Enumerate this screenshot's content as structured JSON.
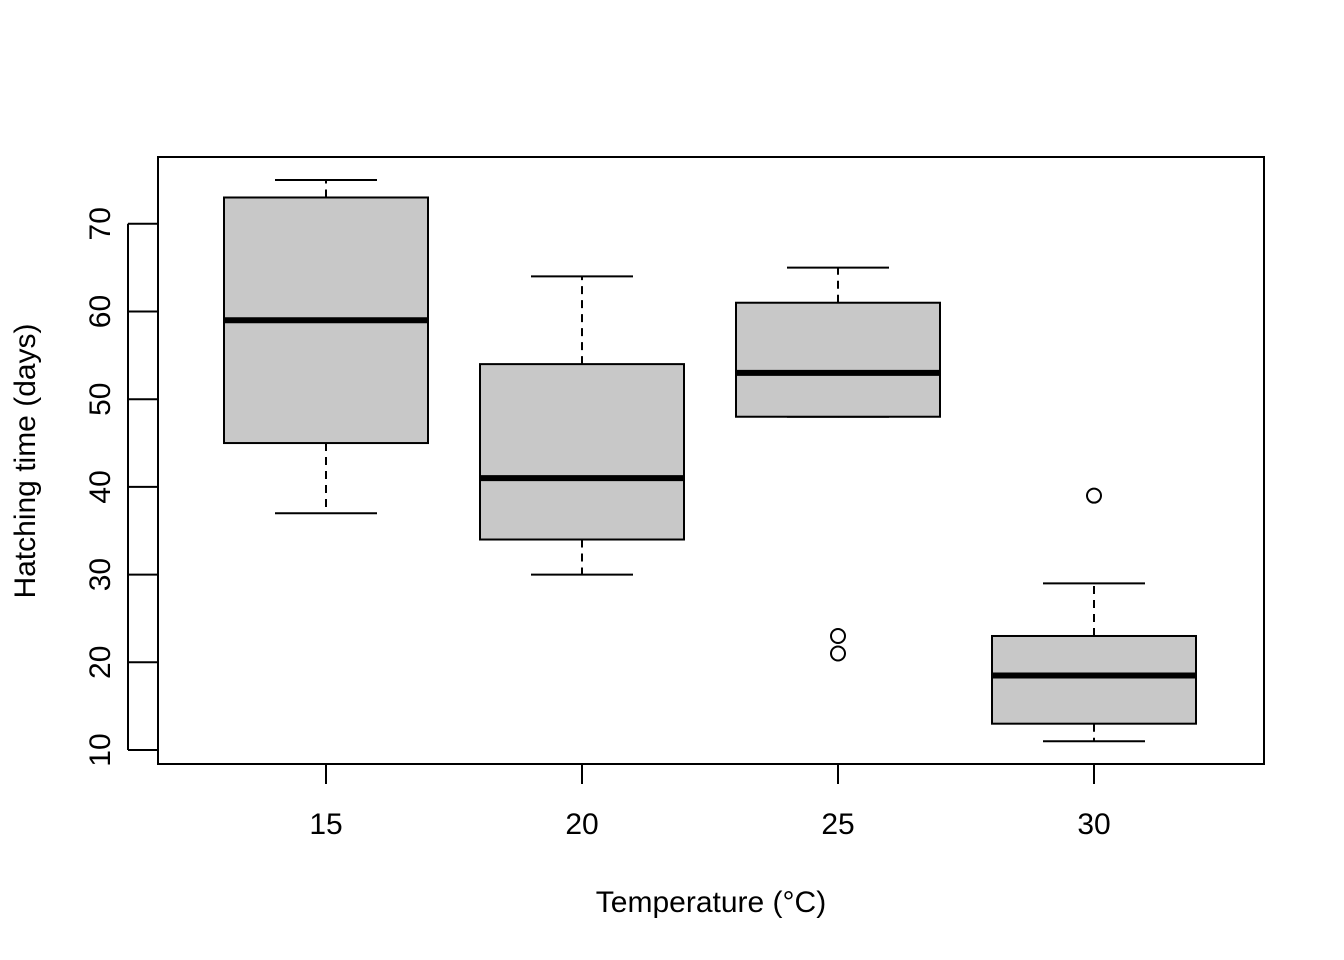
{
  "chart_data": {
    "type": "boxplot",
    "title": "",
    "xlabel": "Temperature (°C)",
    "ylabel": "Hatching time (days)",
    "categories": [
      "15",
      "20",
      "25",
      "30"
    ],
    "yticks": [
      10,
      20,
      30,
      40,
      50,
      60,
      70
    ],
    "ylim": [
      9,
      78
    ],
    "grid": false,
    "box_fill": "#c8c8c8",
    "boxes": [
      {
        "category": "15",
        "whisker_low": 37,
        "q1": 45,
        "median": 59,
        "q3": 73,
        "whisker_high": 75,
        "outliers": []
      },
      {
        "category": "20",
        "whisker_low": 30,
        "q1": 34,
        "median": 41,
        "q3": 54,
        "whisker_high": 64,
        "outliers": []
      },
      {
        "category": "25",
        "whisker_low": 48,
        "q1": 48,
        "median": 53,
        "q3": 61,
        "whisker_high": 65,
        "outliers": [
          21,
          23
        ]
      },
      {
        "category": "30",
        "whisker_low": 11,
        "q1": 13,
        "median": 18.5,
        "q3": 23,
        "whisker_high": 29,
        "outliers": [
          39
        ]
      }
    ]
  }
}
